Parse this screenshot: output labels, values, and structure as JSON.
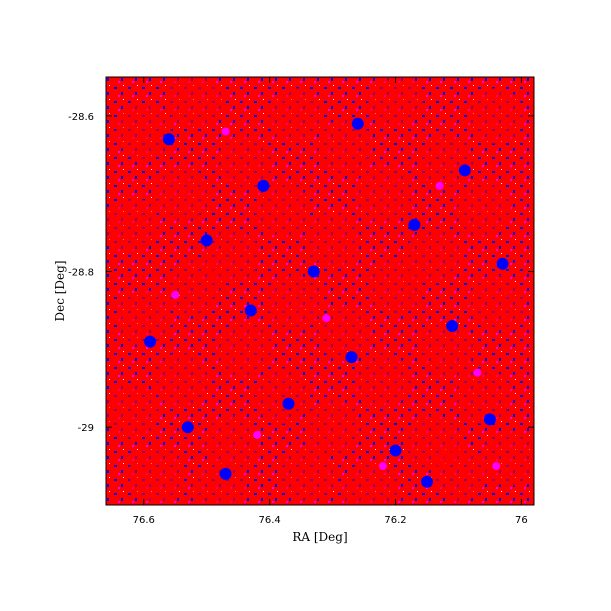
{
  "chart_data": {
    "type": "scatter",
    "title": "",
    "xlabel": "RA [Deg]",
    "ylabel": "Dec [Deg]",
    "xlim": [
      76.66,
      75.98
    ],
    "ylim": [
      -29.1,
      -28.55
    ],
    "x_inverted": true,
    "xticks": [
      {
        "value": 76.6,
        "label": "76.6"
      },
      {
        "value": 76.4,
        "label": "76.4"
      },
      {
        "value": 76.2,
        "label": "76.2"
      },
      {
        "value": 76.0,
        "label": "76"
      }
    ],
    "yticks": [
      {
        "value": -28.6,
        "label": "-28.6"
      },
      {
        "value": -28.8,
        "label": "-28.8"
      },
      {
        "value": -29.0,
        "label": "-29"
      }
    ],
    "grid": false,
    "legend": "none",
    "colors": {
      "dense_layer": "#ff0000",
      "mid_layer": "#0000ff",
      "sparse_layer": "#ff00ff",
      "axes": "#000000"
    },
    "series": [
      {
        "color": "#ff0000",
        "points": [
          [
            76.6,
            -28.62
          ],
          [
            76.52,
            -28.58
          ],
          [
            76.44,
            -28.66
          ],
          [
            76.36,
            -28.6
          ],
          [
            76.28,
            -28.64
          ],
          [
            76.2,
            -28.58
          ],
          [
            76.12,
            -28.66
          ],
          [
            76.04,
            -28.6
          ],
          [
            76.62,
            -28.74
          ],
          [
            76.54,
            -28.7
          ],
          [
            76.46,
            -28.78
          ],
          [
            76.38,
            -28.72
          ],
          [
            76.3,
            -28.76
          ],
          [
            76.22,
            -28.7
          ],
          [
            76.14,
            -28.78
          ],
          [
            76.06,
            -28.72
          ],
          [
            76.6,
            -28.86
          ],
          [
            76.52,
            -28.82
          ],
          [
            76.44,
            -28.9
          ],
          [
            76.36,
            -28.84
          ],
          [
            76.28,
            -28.88
          ],
          [
            76.2,
            -28.82
          ],
          [
            76.12,
            -28.9
          ],
          [
            76.04,
            -28.84
          ],
          [
            76.62,
            -28.98
          ],
          [
            76.54,
            -28.94
          ],
          [
            76.46,
            -29.02
          ],
          [
            76.38,
            -28.96
          ],
          [
            76.3,
            -29.0
          ],
          [
            76.22,
            -28.94
          ],
          [
            76.14,
            -29.02
          ],
          [
            76.06,
            -28.96
          ],
          [
            76.58,
            -29.06
          ],
          [
            76.48,
            -29.08
          ],
          [
            76.34,
            -29.06
          ],
          [
            76.24,
            -29.08
          ],
          [
            76.1,
            -29.06
          ],
          [
            76.02,
            -29.04
          ]
        ]
      },
      {
        "color": "#0000ff",
        "points": [
          [
            76.56,
            -28.63
          ],
          [
            76.41,
            -28.69
          ],
          [
            76.26,
            -28.61
          ],
          [
            76.09,
            -28.67
          ],
          [
            76.5,
            -28.76
          ],
          [
            76.33,
            -28.8
          ],
          [
            76.17,
            -28.74
          ],
          [
            76.03,
            -28.79
          ],
          [
            76.59,
            -28.89
          ],
          [
            76.43,
            -28.85
          ],
          [
            76.27,
            -28.91
          ],
          [
            76.11,
            -28.87
          ],
          [
            76.53,
            -29.0
          ],
          [
            76.37,
            -28.97
          ],
          [
            76.2,
            -29.03
          ],
          [
            76.05,
            -28.99
          ],
          [
            76.47,
            -29.06
          ],
          [
            76.15,
            -29.07
          ]
        ]
      },
      {
        "color": "#ff00ff",
        "points": [
          [
            76.47,
            -28.62
          ],
          [
            76.13,
            -28.69
          ],
          [
            76.55,
            -28.83
          ],
          [
            76.31,
            -28.86
          ],
          [
            76.07,
            -28.93
          ],
          [
            76.42,
            -29.01
          ],
          [
            76.22,
            -29.05
          ],
          [
            76.04,
            -29.05
          ]
        ]
      }
    ]
  }
}
